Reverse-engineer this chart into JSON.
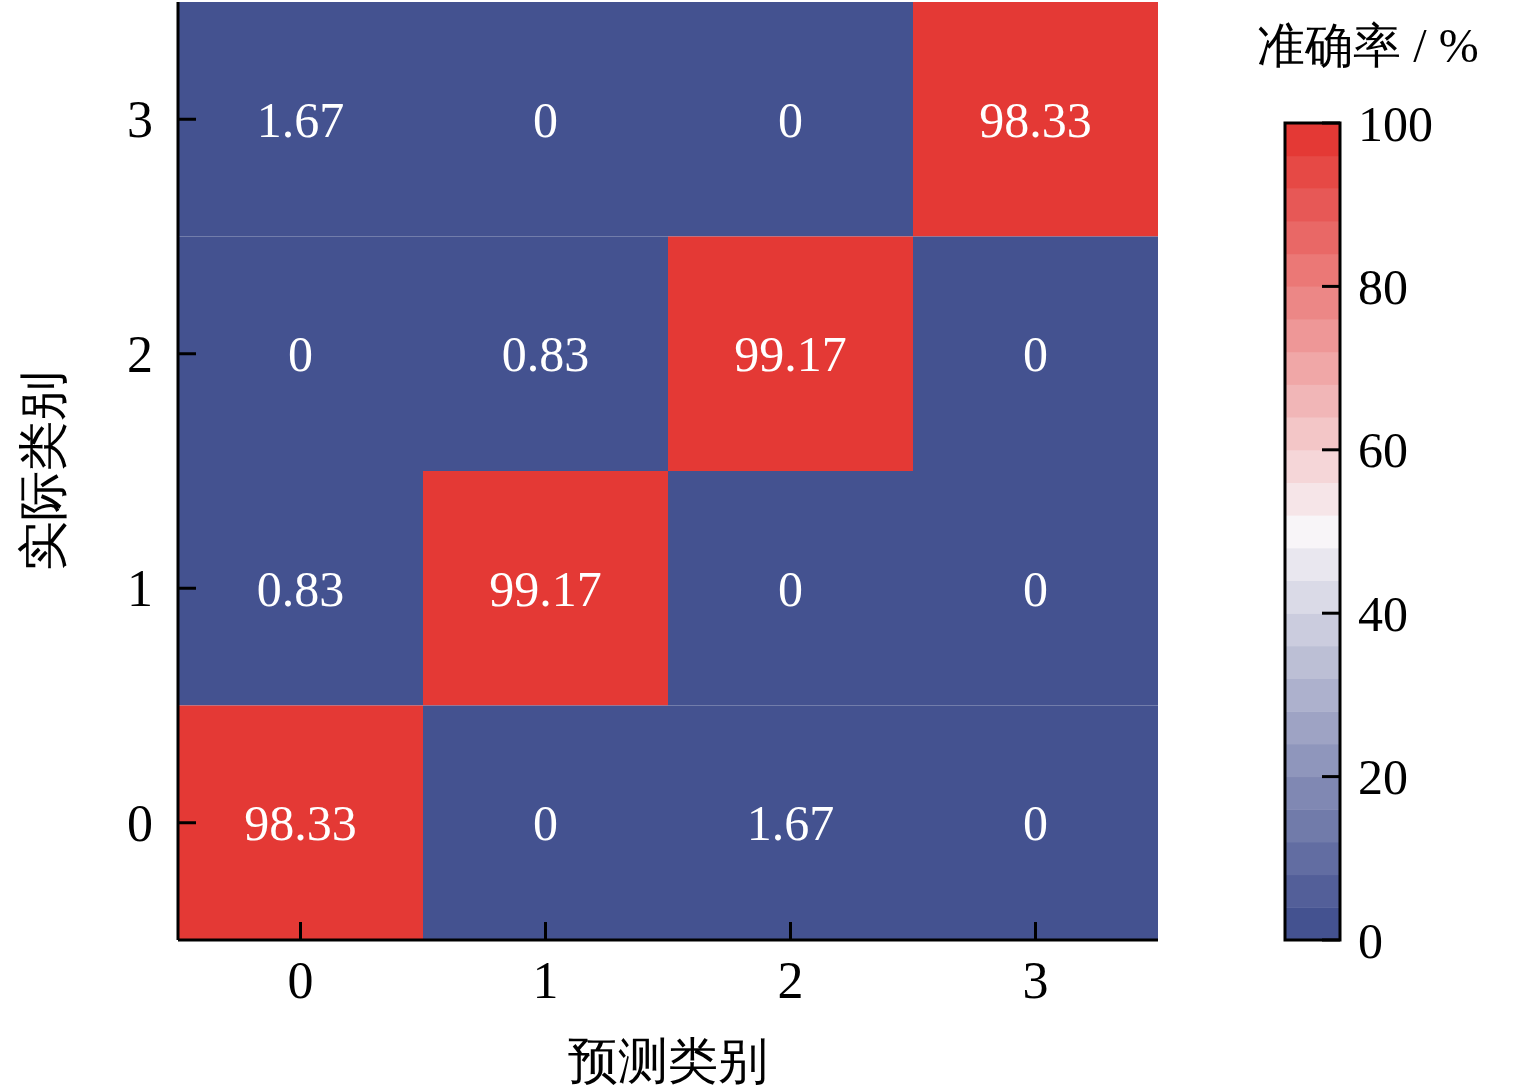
{
  "chart_data": {
    "type": "heatmap",
    "xlabel": "预测类别",
    "ylabel": "实际类别",
    "clabel": "准确率 / %",
    "categories": [
      "0",
      "1",
      "2",
      "3"
    ],
    "y_categories": [
      "3",
      "2",
      "1",
      "0"
    ],
    "cells": [
      [
        1.67,
        0,
        0,
        98.33
      ],
      [
        0,
        0.83,
        99.17,
        0
      ],
      [
        0.83,
        99.17,
        0,
        0
      ],
      [
        98.33,
        0,
        1.67,
        0
      ]
    ],
    "clim": [
      0,
      100
    ],
    "cticks": [
      0,
      20,
      40,
      60,
      80,
      100
    ],
    "data_labels": true
  }
}
